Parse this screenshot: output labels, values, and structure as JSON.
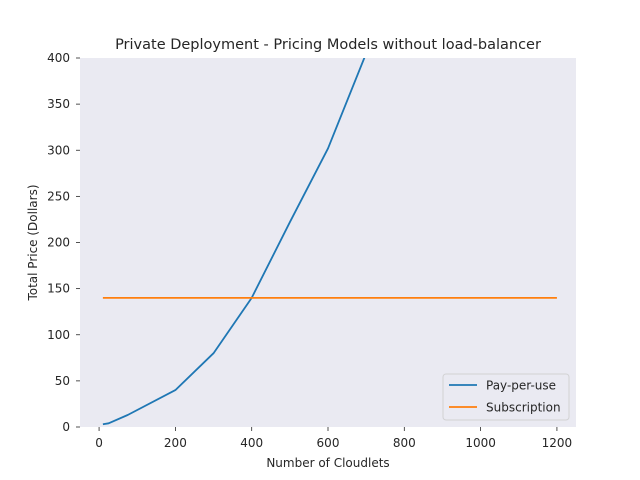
{
  "chart_data": {
    "type": "line",
    "title": "Private Deployment - Pricing Models without load-balancer",
    "xlabel": "Number of Cloudlets",
    "ylabel": "Total Price (Dollars)",
    "xlim": [
      -50,
      1250
    ],
    "ylim": [
      0,
      400
    ],
    "xticks": [
      0,
      200,
      400,
      600,
      800,
      1000,
      1200
    ],
    "yticks": [
      0,
      50,
      100,
      150,
      200,
      250,
      300,
      350,
      400
    ],
    "grid": false,
    "legend_position": "lower-right",
    "series": [
      {
        "name": "Pay-per-use",
        "color": "#1f77b4",
        "x": [
          10,
          25,
          75,
          200,
          300,
          400,
          500,
          600,
          700
        ],
        "y": [
          3,
          4,
          13,
          40,
          80,
          140,
          222,
          302,
          405
        ]
      },
      {
        "name": "Subscription",
        "color": "#ff7f0e",
        "x": [
          10,
          1200
        ],
        "y": [
          140,
          140
        ]
      }
    ]
  }
}
